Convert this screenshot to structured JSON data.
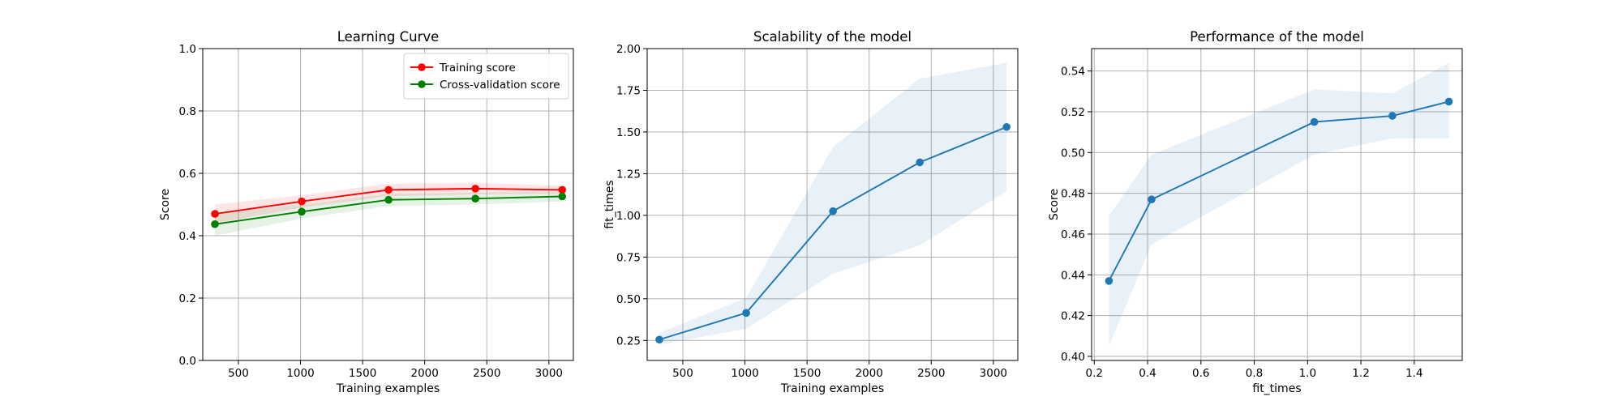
{
  "chart_data": [
    {
      "type": "line",
      "title": "Learning Curve",
      "xlabel": "Training examples",
      "ylabel": "Score",
      "xlim": [
        213,
        3197
      ],
      "ylim": [
        0.0,
        1.0
      ],
      "xticks": [
        500,
        1000,
        1500,
        2000,
        2500,
        3000
      ],
      "xtick_labels": [
        "500",
        "1000",
        "1500",
        "2000",
        "2500",
        "3000"
      ],
      "yticks": [
        0.0,
        0.2,
        0.4,
        0.6,
        0.8,
        1.0
      ],
      "ytick_labels": [
        "0.0",
        "0.2",
        "0.4",
        "0.6",
        "0.8",
        "1.0"
      ],
      "grid": true,
      "legend": "upper right",
      "x": [
        311,
        1010,
        1709,
        2408,
        3107
      ],
      "series": [
        {
          "name": "Training score",
          "color": "#ff0000",
          "values": [
            0.47,
            0.51,
            0.547,
            0.551,
            0.547
          ],
          "band_low": [
            0.44,
            0.49,
            0.527,
            0.532,
            0.535
          ],
          "band_high": [
            0.5,
            0.53,
            0.567,
            0.57,
            0.56
          ]
        },
        {
          "name": "Cross-validation score",
          "color": "#008000",
          "values": [
            0.437,
            0.477,
            0.515,
            0.519,
            0.526
          ],
          "band_low": [
            0.4,
            0.455,
            0.495,
            0.5,
            0.51
          ],
          "band_high": [
            0.474,
            0.499,
            0.535,
            0.538,
            0.542
          ]
        }
      ]
    },
    {
      "type": "line",
      "title": "Scalability of the model",
      "xlabel": "Training examples",
      "ylabel": "fit_times",
      "xlim": [
        213,
        3197
      ],
      "ylim": [
        0.13,
        2.0
      ],
      "xticks": [
        500,
        1000,
        1500,
        2000,
        2500,
        3000
      ],
      "xtick_labels": [
        "500",
        "1000",
        "1500",
        "2000",
        "2500",
        "3000"
      ],
      "yticks": [
        0.25,
        0.5,
        0.75,
        1.0,
        1.25,
        1.5,
        1.75,
        2.0
      ],
      "ytick_labels": [
        "0.25",
        "0.50",
        "0.75",
        "1.00",
        "1.25",
        "1.50",
        "1.75",
        "2.00"
      ],
      "grid": true,
      "x": [
        311,
        1010,
        1709,
        2408,
        3107
      ],
      "series": [
        {
          "color": "#1f77b4",
          "values": [
            0.255,
            0.415,
            1.025,
            1.318,
            1.53
          ],
          "band_low": [
            0.225,
            0.32,
            0.65,
            0.82,
            1.145
          ],
          "band_high": [
            0.295,
            0.505,
            1.41,
            1.82,
            1.915
          ]
        }
      ]
    },
    {
      "type": "line",
      "title": "Performance of the model",
      "xlabel": "fit_times",
      "ylabel": "Score",
      "xlim": [
        0.19,
        1.58
      ],
      "ylim": [
        0.398,
        0.551
      ],
      "xticks": [
        0.2,
        0.4,
        0.6,
        0.8,
        1.0,
        1.2,
        1.4
      ],
      "xtick_labels": [
        "0.2",
        "0.4",
        "0.6",
        "0.8",
        "1.0",
        "1.2",
        "1.4"
      ],
      "yticks": [
        0.4,
        0.42,
        0.44,
        0.46,
        0.48,
        0.5,
        0.52,
        0.54
      ],
      "ytick_labels": [
        "0.40",
        "0.42",
        "0.44",
        "0.46",
        "0.48",
        "0.50",
        "0.52",
        "0.54"
      ],
      "grid": true,
      "x": [
        0.255,
        0.415,
        1.025,
        1.318,
        1.53
      ],
      "series": [
        {
          "color": "#1f77b4",
          "values": [
            0.437,
            0.477,
            0.515,
            0.518,
            0.525
          ],
          "band_low": [
            0.405,
            0.455,
            0.499,
            0.507,
            0.507
          ],
          "band_high": [
            0.469,
            0.499,
            0.531,
            0.529,
            0.544
          ]
        }
      ]
    }
  ]
}
